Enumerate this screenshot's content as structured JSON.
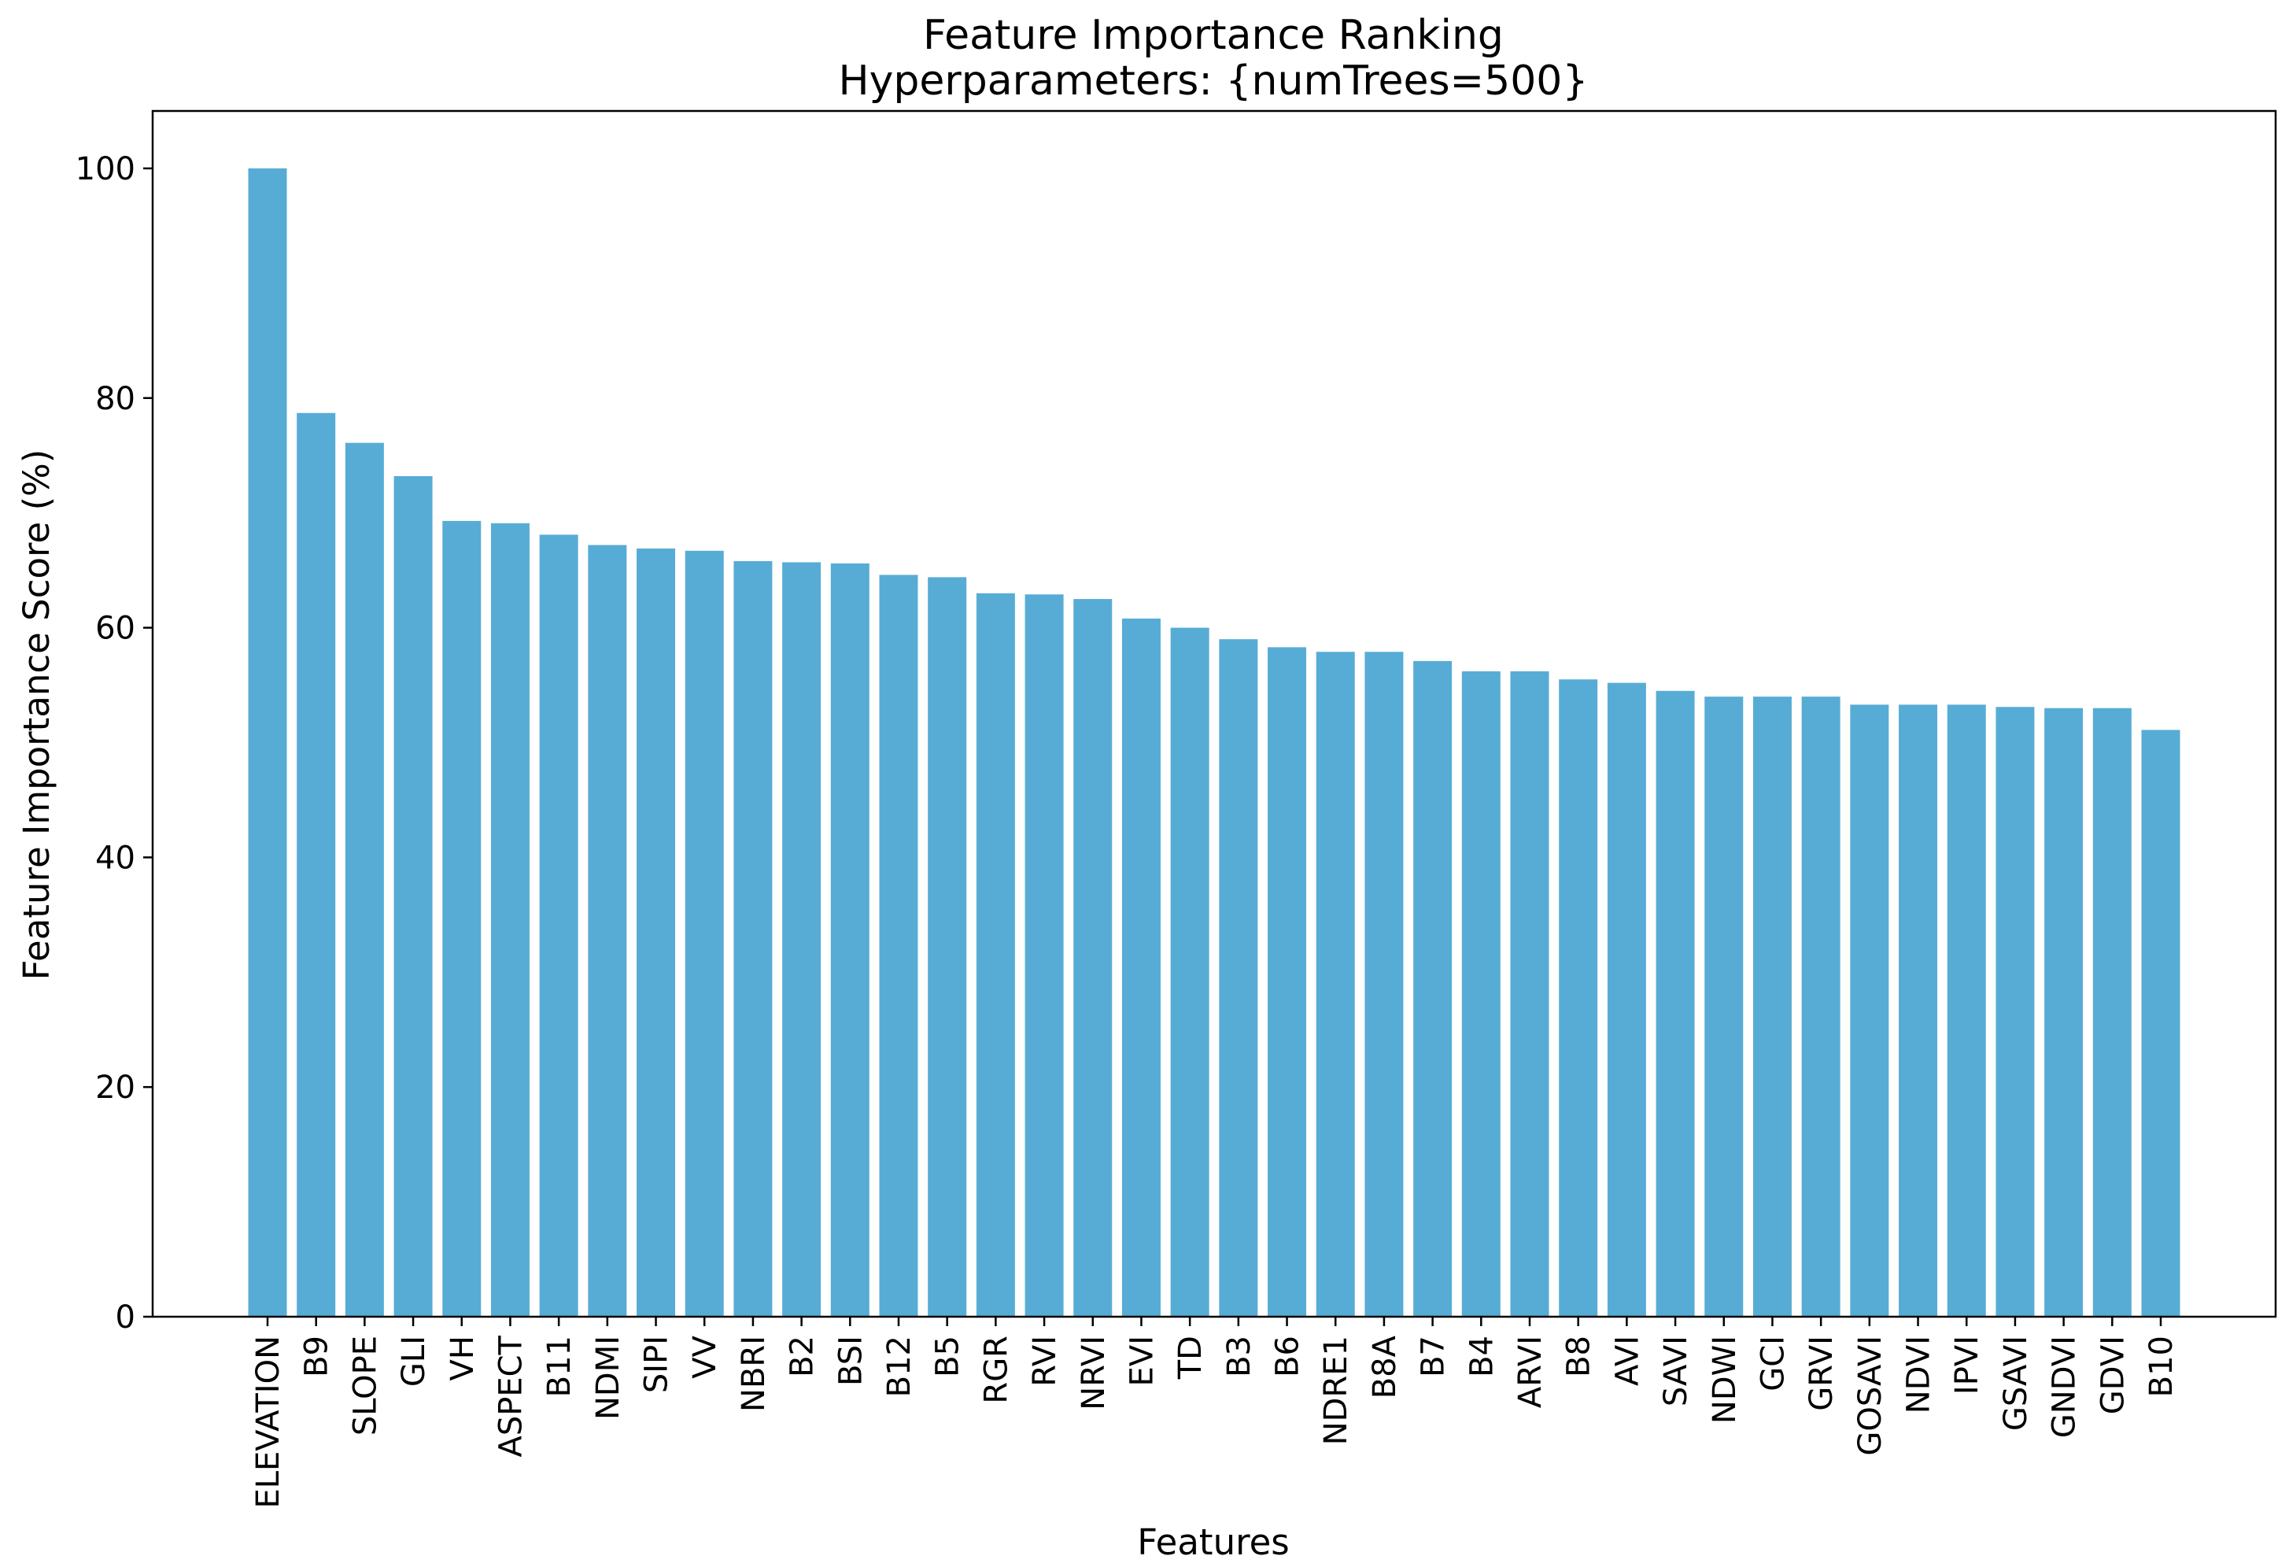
{
  "chart_data": {
    "type": "bar",
    "title": "Feature Importance Ranking",
    "subtitle": "Hyperparameters: {numTrees=500}",
    "xlabel": "Features",
    "ylabel": "Feature Importance Score (%)",
    "ylim": [
      0,
      105
    ],
    "yticks": [
      0,
      20,
      40,
      60,
      80,
      100
    ],
    "grid": false,
    "bar_color": "#57ACD5",
    "categories": [
      "ELEVATION",
      "B9",
      "SLOPE",
      "GLI",
      "VH",
      "ASPECT",
      "B11",
      "NDMI",
      "SIPI",
      "VV",
      "NBRI",
      "B2",
      "BSI",
      "B12",
      "B5",
      "RGR",
      "RVI",
      "NRVI",
      "EVI",
      "TD",
      "B3",
      "B6",
      "NDRE1",
      "B8A",
      "B7",
      "B4",
      "ARVI",
      "B8",
      "AVI",
      "SAVI",
      "NDWI",
      "GCI",
      "GRVI",
      "GOSAVI",
      "NDVI",
      "IPVI",
      "GSAVI",
      "GNDVI",
      "GDVI",
      "B10"
    ],
    "values": [
      100,
      78.7,
      76.1,
      73.2,
      69.3,
      69.1,
      68.1,
      67.2,
      66.9,
      66.7,
      65.8,
      65.7,
      65.6,
      64.6,
      64.4,
      63.0,
      62.9,
      62.5,
      60.8,
      60.0,
      59.0,
      58.3,
      57.9,
      57.9,
      57.1,
      56.2,
      56.2,
      55.5,
      55.2,
      54.5,
      54.0,
      54.0,
      54.0,
      53.3,
      53.3,
      53.3,
      53.1,
      53.0,
      53.0,
      51.1
    ]
  }
}
